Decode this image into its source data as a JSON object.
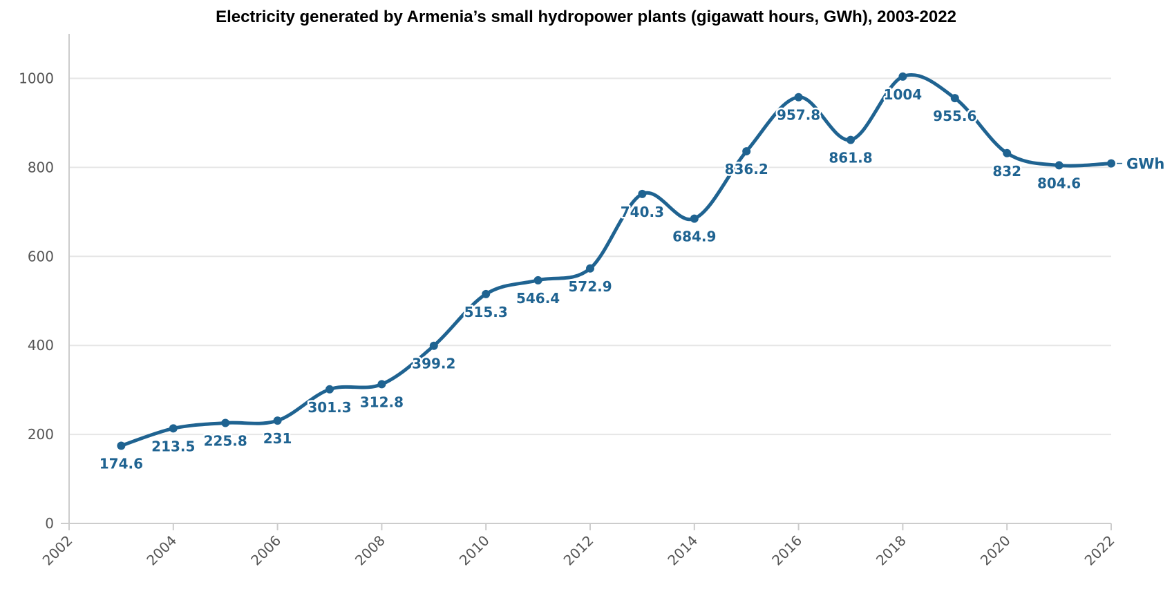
{
  "chart_data": {
    "type": "line",
    "title": "Electricity generated by Armenia’s small hydropower plants (gigawatt hours, GWh), 2003-2022",
    "xlabel": "",
    "ylabel": "",
    "xlim": [
      2002,
      2022
    ],
    "ylim": [
      0,
      1100
    ],
    "x_ticks": [
      "2002",
      "2004",
      "2006",
      "2008",
      "2010",
      "2012",
      "2014",
      "2016",
      "2018",
      "2020",
      "2022"
    ],
    "y_ticks": [
      "0",
      "200",
      "400",
      "600",
      "800",
      "1000"
    ],
    "grid": true,
    "legend": "none",
    "series": [
      {
        "name": "GWh",
        "color": "#1f6391",
        "x": [
          2003,
          2004,
          2005,
          2006,
          2007,
          2008,
          2009,
          2010,
          2011,
          2012,
          2013,
          2014,
          2015,
          2016,
          2017,
          2018,
          2019,
          2020,
          2021,
          2022
        ],
        "values": [
          174.6,
          213.5,
          225.8,
          231,
          301.3,
          312.8,
          399.2,
          515.3,
          546.4,
          572.9,
          740.3,
          684.9,
          836.2,
          957.8,
          861.8,
          1004,
          955.6,
          832,
          804.6,
          809
        ],
        "labels": [
          "174.6",
          "213.5",
          "225.8",
          "231",
          "301.3",
          "312.8",
          "399.2",
          "515.3",
          "546.4",
          "572.9",
          "740.3",
          "684.9",
          "836.2",
          "957.8",
          "861.8",
          "1004",
          "955.6",
          "832",
          "804.6",
          ""
        ]
      }
    ]
  }
}
